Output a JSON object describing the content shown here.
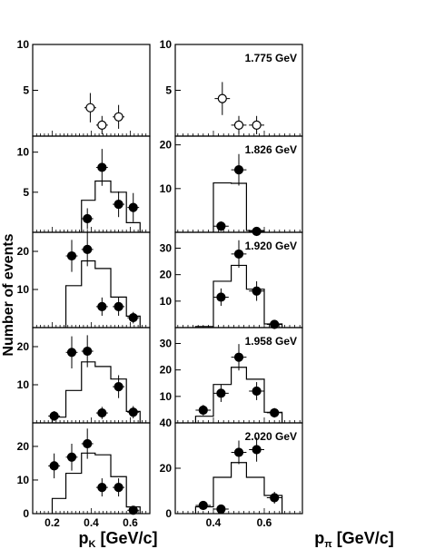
{
  "figure": {
    "ylabel": "Number of events",
    "xlabel_left": "p",
    "xlabel_left_sub": "K",
    "xlabel_left_unit": " [GeV/c]",
    "xlabel_right": "p",
    "xlabel_right_sub": "π",
    "xlabel_right_unit": " [GeV/c]"
  },
  "chart_data": [
    {
      "panel": "row1-left",
      "type": "scatter",
      "xlim": [
        0.1,
        0.7
      ],
      "ylim": [
        0,
        10
      ],
      "yticks": [
        "5",
        "10"
      ],
      "xticks": [],
      "energy_label": "",
      "points": [
        {
          "x": 0.395,
          "y": 3.1,
          "xerr": 0.03,
          "yerr": 1.6,
          "marker": "open"
        },
        {
          "x": 0.455,
          "y": 1.2,
          "xerr": 0.03,
          "yerr": 1.0,
          "marker": "open"
        },
        {
          "x": 0.54,
          "y": 2.1,
          "xerr": 0.03,
          "yerr": 1.3,
          "marker": "open"
        }
      ],
      "histogram": null
    },
    {
      "panel": "row1-right",
      "type": "scatter",
      "xlim": [
        0.25,
        0.75
      ],
      "ylim": [
        0,
        10
      ],
      "yticks": [
        "5",
        "10"
      ],
      "xticks": [],
      "energy_label": "1.775 GeV",
      "points": [
        {
          "x": 0.435,
          "y": 4.1,
          "xerr": 0.03,
          "yerr": 1.8,
          "marker": "open"
        },
        {
          "x": 0.5,
          "y": 1.2,
          "xerr": 0.03,
          "yerr": 1.0,
          "marker": "open"
        },
        {
          "x": 0.57,
          "y": 1.2,
          "xerr": 0.03,
          "yerr": 1.0,
          "marker": "open"
        }
      ],
      "histogram": null
    },
    {
      "panel": "row2-left",
      "type": "scatter",
      "xlim": [
        0.1,
        0.7
      ],
      "ylim": [
        0,
        12
      ],
      "yticks": [
        "5",
        "10"
      ],
      "xticks": [],
      "energy_label": "",
      "points": [
        {
          "x": 0.38,
          "y": 1.7,
          "xerr": 0.03,
          "yerr": 1.3
        },
        {
          "x": 0.455,
          "y": 8.1,
          "xerr": 0.03,
          "yerr": 2.3
        },
        {
          "x": 0.54,
          "y": 3.5,
          "xerr": 0.03,
          "yerr": 1.6
        },
        {
          "x": 0.615,
          "y": 3.1,
          "xerr": 0.03,
          "yerr": 1.8
        }
      ],
      "histogram": {
        "edges": [
          0.35,
          0.42,
          0.5,
          0.58,
          0.65
        ],
        "values": [
          4.0,
          6.4,
          5.0,
          1.2
        ]
      }
    },
    {
      "panel": "row2-right",
      "type": "scatter",
      "xlim": [
        0.25,
        0.75
      ],
      "ylim": [
        0,
        22
      ],
      "yticks": [
        "10",
        "20"
      ],
      "xticks": [],
      "energy_label": "1.826 GeV",
      "points": [
        {
          "x": 0.43,
          "y": 1.4,
          "xerr": 0.03,
          "yerr": 1.1
        },
        {
          "x": 0.5,
          "y": 14.3,
          "xerr": 0.03,
          "yerr": 3.6
        },
        {
          "x": 0.57,
          "y": 0.2,
          "xerr": 0.03,
          "yerr": 0.2
        }
      ],
      "histogram": {
        "edges": [
          0.4,
          0.47,
          0.53,
          0.6
        ],
        "values": [
          11.3,
          11.2,
          0.4
        ]
      }
    },
    {
      "panel": "row3-left",
      "type": "scatter",
      "xlim": [
        0.1,
        0.7
      ],
      "ylim": [
        0,
        25
      ],
      "yticks": [
        "10",
        "20"
      ],
      "xticks": [],
      "energy_label": "",
      "points": [
        {
          "x": 0.3,
          "y": 18.8,
          "xerr": 0.03,
          "yerr": 4.2
        },
        {
          "x": 0.38,
          "y": 20.5,
          "xerr": 0.03,
          "yerr": 4.4
        },
        {
          "x": 0.455,
          "y": 5.5,
          "xerr": 0.03,
          "yerr": 2.4
        },
        {
          "x": 0.54,
          "y": 5.5,
          "xerr": 0.03,
          "yerr": 2.4
        },
        {
          "x": 0.615,
          "y": 2.6,
          "xerr": 0.03,
          "yerr": 1.5
        }
      ],
      "histogram": {
        "edges": [
          0.27,
          0.35,
          0.42,
          0.5,
          0.58,
          0.65
        ],
        "values": [
          11.0,
          17.5,
          15.5,
          8.0,
          3.0
        ]
      }
    },
    {
      "panel": "row3-right",
      "type": "scatter",
      "xlim": [
        0.25,
        0.75
      ],
      "ylim": [
        0,
        36
      ],
      "yticks": [
        "10",
        "20",
        "30"
      ],
      "xticks": [],
      "energy_label": "1.920 GeV",
      "points": [
        {
          "x": 0.43,
          "y": 11.5,
          "xerr": 0.03,
          "yerr": 3.3
        },
        {
          "x": 0.5,
          "y": 27.8,
          "xerr": 0.03,
          "yerr": 5.2
        },
        {
          "x": 0.57,
          "y": 13.8,
          "xerr": 0.03,
          "yerr": 3.7
        },
        {
          "x": 0.64,
          "y": 1.2,
          "xerr": 0.03,
          "yerr": 1.0
        }
      ],
      "histogram": {
        "edges": [
          0.33,
          0.4,
          0.47,
          0.53,
          0.6,
          0.67
        ],
        "values": [
          0.4,
          17.5,
          23.5,
          14.5,
          1.4
        ]
      }
    },
    {
      "panel": "row4-left",
      "type": "scatter",
      "xlim": [
        0.1,
        0.7
      ],
      "ylim": [
        0,
        25
      ],
      "yticks": [
        "10",
        "20"
      ],
      "xticks": [],
      "energy_label": "",
      "points": [
        {
          "x": 0.21,
          "y": 1.8,
          "xerr": 0.03,
          "yerr": 1.3
        },
        {
          "x": 0.3,
          "y": 18.5,
          "xerr": 0.03,
          "yerr": 4.2
        },
        {
          "x": 0.38,
          "y": 18.8,
          "xerr": 0.03,
          "yerr": 4.2
        },
        {
          "x": 0.455,
          "y": 2.6,
          "xerr": 0.03,
          "yerr": 1.6
        },
        {
          "x": 0.54,
          "y": 9.5,
          "xerr": 0.03,
          "yerr": 3.0
        },
        {
          "x": 0.615,
          "y": 2.8,
          "xerr": 0.03,
          "yerr": 1.6
        }
      ],
      "histogram": {
        "edges": [
          0.2,
          0.27,
          0.35,
          0.42,
          0.5,
          0.58,
          0.65
        ],
        "values": [
          1.5,
          8.5,
          16.0,
          14.8,
          11.5,
          3.0
        ]
      }
    },
    {
      "panel": "row4-right",
      "type": "scatter",
      "xlim": [
        0.25,
        0.75
      ],
      "ylim": [
        0,
        36
      ],
      "yticks": [
        "10",
        "20",
        "30"
      ],
      "xticks": [],
      "energy_label": "1.958 GeV",
      "points": [
        {
          "x": 0.36,
          "y": 4.8,
          "xerr": 0.03,
          "yerr": 2.0
        },
        {
          "x": 0.43,
          "y": 11.2,
          "xerr": 0.03,
          "yerr": 3.3
        },
        {
          "x": 0.5,
          "y": 24.8,
          "xerr": 0.03,
          "yerr": 5.0
        },
        {
          "x": 0.57,
          "y": 12.0,
          "xerr": 0.03,
          "yerr": 3.4
        },
        {
          "x": 0.64,
          "y": 3.8,
          "xerr": 0.03,
          "yerr": 1.8
        }
      ],
      "histogram": {
        "edges": [
          0.33,
          0.4,
          0.47,
          0.53,
          0.6,
          0.67
        ],
        "values": [
          2.5,
          14.5,
          21.0,
          16.5,
          4.0
        ]
      }
    },
    {
      "panel": "row5-left",
      "type": "scatter",
      "xlim": [
        0.1,
        0.7
      ],
      "ylim": [
        0,
        27
      ],
      "yticks": [
        "0",
        "10",
        "20"
      ],
      "xticks": [
        "0.2",
        "0.4",
        "0.6"
      ],
      "energy_label": "",
      "points": [
        {
          "x": 0.21,
          "y": 14.2,
          "xerr": 0.03,
          "yerr": 3.7
        },
        {
          "x": 0.3,
          "y": 16.8,
          "xerr": 0.03,
          "yerr": 4.0
        },
        {
          "x": 0.38,
          "y": 20.8,
          "xerr": 0.03,
          "yerr": 4.5
        },
        {
          "x": 0.455,
          "y": 7.8,
          "xerr": 0.03,
          "yerr": 2.7
        },
        {
          "x": 0.54,
          "y": 7.8,
          "xerr": 0.03,
          "yerr": 2.7
        },
        {
          "x": 0.615,
          "y": 1.0,
          "xerr": 0.03,
          "yerr": 0.9
        }
      ],
      "histogram": {
        "edges": [
          0.2,
          0.27,
          0.35,
          0.42,
          0.5,
          0.58,
          0.65
        ],
        "values": [
          4.5,
          12.0,
          18.0,
          17.5,
          11.0,
          2.0
        ]
      }
    },
    {
      "panel": "row5-right",
      "type": "scatter",
      "xlim": [
        0.25,
        0.75
      ],
      "ylim": [
        0,
        40
      ],
      "yticks": [
        "0",
        "20",
        "40"
      ],
      "xticks": [
        "0.4",
        "0.6"
      ],
      "energy_label": "2.020 GeV",
      "points": [
        {
          "x": 0.36,
          "y": 3.6,
          "xerr": 0.03,
          "yerr": 1.8
        },
        {
          "x": 0.43,
          "y": 2.0,
          "xerr": 0.03,
          "yerr": 1.3
        },
        {
          "x": 0.5,
          "y": 27.0,
          "xerr": 0.03,
          "yerr": 5.2
        },
        {
          "x": 0.57,
          "y": 28.2,
          "xerr": 0.03,
          "yerr": 5.3
        },
        {
          "x": 0.64,
          "y": 7.0,
          "xerr": 0.03,
          "yerr": 2.6
        }
      ],
      "histogram": {
        "edges": [
          0.33,
          0.4,
          0.47,
          0.53,
          0.6,
          0.67
        ],
        "values": [
          3.0,
          16.0,
          22.5,
          16.0,
          8.0
        ]
      }
    }
  ]
}
